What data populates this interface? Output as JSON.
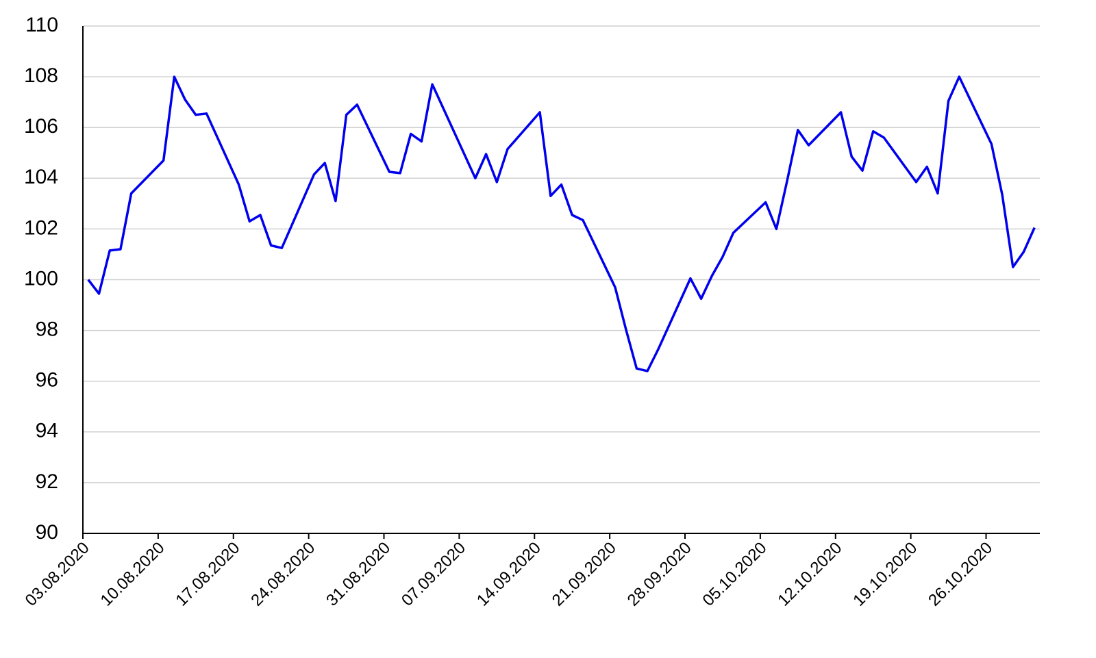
{
  "chart_data": {
    "type": "line",
    "color": "#0000ee",
    "grid": true,
    "x": [
      "03.08.2020",
      "04.08.2020",
      "05.08.2020",
      "06.08.2020",
      "07.08.2020",
      "10.08.2020",
      "11.08.2020",
      "12.08.2020",
      "13.08.2020",
      "14.08.2020",
      "17.08.2020",
      "18.08.2020",
      "19.08.2020",
      "20.08.2020",
      "21.08.2020",
      "24.08.2020",
      "25.08.2020",
      "26.08.2020",
      "27.08.2020",
      "28.08.2020",
      "31.08.2020",
      "01.09.2020",
      "02.09.2020",
      "03.09.2020",
      "04.09.2020",
      "08.09.2020",
      "09.09.2020",
      "10.09.2020",
      "11.09.2020",
      "14.09.2020",
      "15.09.2020",
      "16.09.2020",
      "17.09.2020",
      "18.09.2020",
      "21.09.2020",
      "22.09.2020",
      "23.09.2020",
      "24.09.2020",
      "25.09.2020",
      "28.09.2020",
      "29.09.2020",
      "30.09.2020",
      "01.10.2020",
      "02.10.2020",
      "05.10.2020",
      "06.10.2020",
      "07.10.2020",
      "08.10.2020",
      "09.10.2020",
      "12.10.2020",
      "13.10.2020",
      "14.10.2020",
      "15.10.2020",
      "16.10.2020",
      "19.10.2020",
      "20.10.2020",
      "21.10.2020",
      "22.10.2020",
      "23.10.2020",
      "26.10.2020",
      "27.10.2020",
      "28.10.2020",
      "29.10.2020",
      "30.10.2020"
    ],
    "values": [
      100.0,
      99.45,
      101.15,
      101.2,
      103.4,
      104.7,
      108.0,
      107.1,
      106.5,
      106.55,
      103.75,
      102.3,
      102.55,
      101.35,
      101.25,
      104.15,
      104.6,
      103.1,
      106.5,
      106.9,
      104.25,
      104.2,
      105.75,
      105.45,
      107.7,
      104.0,
      104.95,
      103.85,
      105.15,
      106.6,
      103.3,
      103.75,
      102.55,
      102.35,
      99.7,
      98.05,
      96.5,
      96.4,
      97.25,
      100.05,
      99.25,
      100.15,
      100.9,
      101.85,
      103.05,
      102.0,
      103.9,
      105.9,
      105.3,
      106.6,
      104.85,
      104.3,
      105.85,
      105.6,
      103.85,
      104.45,
      103.4,
      107.05,
      108.0,
      105.35,
      103.35,
      100.5,
      101.1,
      102.05
    ],
    "xlim": [
      "03.08.2020",
      "31.10.2020"
    ],
    "xticks": [
      "03.08.2020",
      "10.08.2020",
      "17.08.2020",
      "24.08.2020",
      "31.08.2020",
      "07.09.2020",
      "14.09.2020",
      "21.09.2020",
      "28.09.2020",
      "05.10.2020",
      "12.10.2020",
      "19.10.2020",
      "26.10.2020"
    ],
    "ylim": [
      90,
      110
    ],
    "yticks": [
      90,
      92,
      94,
      96,
      98,
      100,
      102,
      104,
      106,
      108,
      110
    ]
  }
}
